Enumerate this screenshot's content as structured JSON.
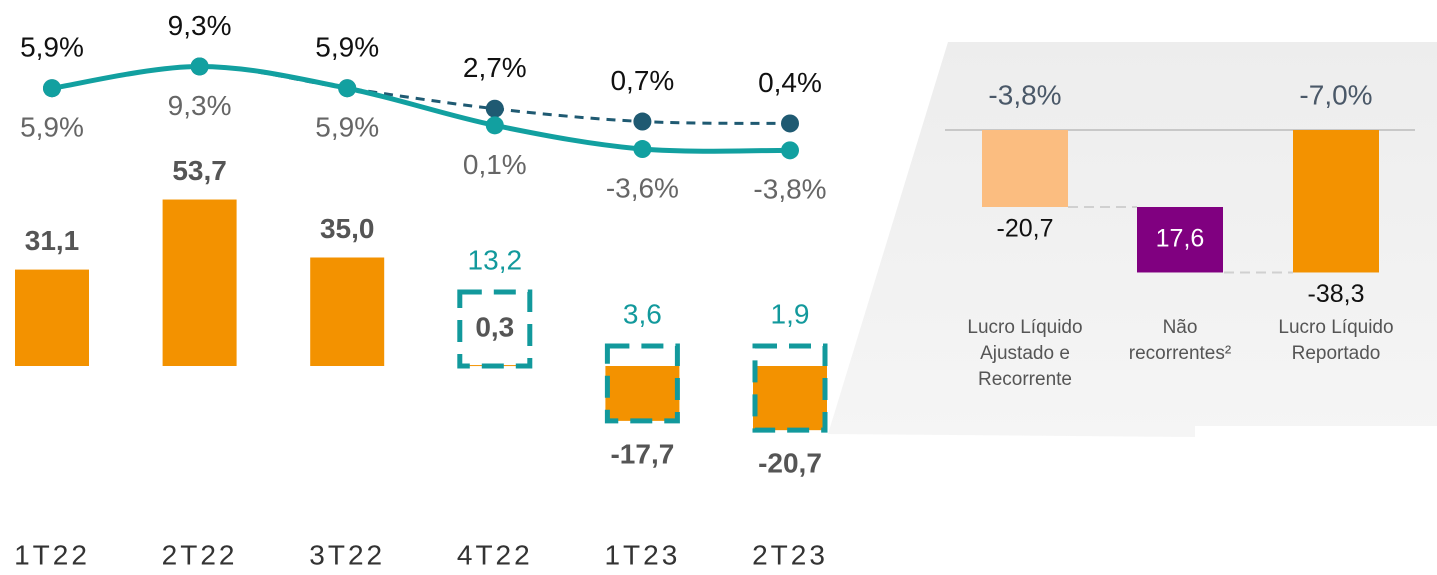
{
  "chart_data": [
    {
      "type": "bar",
      "categories": [
        "1T22",
        "2T22",
        "3T22",
        "4T22",
        "1T23",
        "2T23"
      ],
      "values": [
        31.1,
        53.7,
        35.0,
        0.3,
        -17.7,
        -20.7
      ],
      "value_labels": [
        "31,1",
        "53,7",
        "35,0",
        "0,3",
        "-17,7",
        "-20,7"
      ],
      "color": "#f39200",
      "adjusted": {
        "values": [
          null,
          null,
          null,
          13.2,
          3.6,
          1.9
        ],
        "value_labels": [
          null,
          null,
          null,
          "13,2",
          "3,6",
          "1,9"
        ],
        "color": "#12999c"
      }
    },
    {
      "type": "line",
      "series": [
        {
          "color": "#1f5a72",
          "dashed": true,
          "label_side": "above",
          "values": [
            5.9,
            9.3,
            5.9,
            2.7,
            0.7,
            0.4
          ],
          "value_labels": [
            "5,9%",
            "9,3%",
            "5,9%",
            "2,7%",
            "0,7%",
            "0,4%"
          ]
        },
        {
          "color": "#12a0a0",
          "dashed": false,
          "label_side": "below",
          "values": [
            5.9,
            9.3,
            5.9,
            0.1,
            -3.6,
            -3.8
          ],
          "value_labels": [
            "5,9%",
            "9,3%",
            "5,9%",
            "0,1%",
            "-3,6%",
            "-3,8%"
          ]
        }
      ]
    },
    {
      "type": "waterfall",
      "categories": [
        "Lucro Líquido Ajustado e Recorrente",
        "Não recorrentes²",
        "Lucro Líquido Reportado"
      ],
      "steps": [
        "total",
        "decrease",
        "total"
      ],
      "values": [
        -20.7,
        17.6,
        -38.3
      ],
      "value_labels": [
        "-20,7",
        "17,6",
        "-38,3"
      ],
      "colors": [
        "#fbbd80",
        "#800080",
        "#f39200"
      ],
      "margins": {
        "values": [
          -3.8,
          null,
          -7.0
        ],
        "value_labels": [
          "-3,8%",
          null,
          "-7,0%"
        ]
      }
    }
  ]
}
